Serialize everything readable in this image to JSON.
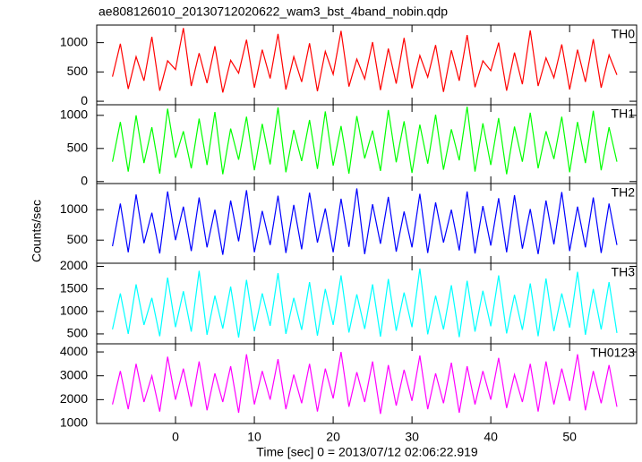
{
  "chart_data": {
    "type": "line",
    "title": "ae808126010_20130712020622_wam3_bst_4band_nobin.qdp",
    "x_label": "Time [sec] 0 = 2013/07/12 02:06:22.919",
    "y_label": "Counts/sec",
    "xlim": [
      -10,
      58.5
    ],
    "xticks": [
      0,
      10,
      20,
      30,
      40,
      50
    ],
    "x": [
      -8,
      -7,
      -6,
      -5,
      -4,
      -3,
      -2,
      -1,
      0,
      1,
      2,
      3,
      4,
      5,
      6,
      7,
      8,
      9,
      10,
      11,
      12,
      13,
      14,
      15,
      16,
      17,
      18,
      19,
      20,
      21,
      22,
      23,
      24,
      25,
      26,
      27,
      28,
      29,
      30,
      31,
      32,
      33,
      34,
      35,
      36,
      37,
      38,
      39,
      40,
      41,
      42,
      43,
      44,
      45,
      46,
      47,
      48,
      49,
      50,
      51,
      52,
      53,
      54,
      55,
      56
    ],
    "series": [
      {
        "name": "TH0",
        "color": "#ff0000",
        "ylim": [
          -60,
          1300
        ],
        "yticks": [
          0,
          500,
          1000
        ],
        "values": [
          420,
          980,
          210,
          760,
          350,
          1100,
          180,
          690,
          540,
          1250,
          260,
          820,
          310,
          940,
          150,
          700,
          480,
          1050,
          230,
          880,
          390,
          1150,
          200,
          760,
          330,
          990,
          170,
          850,
          460,
          1200,
          250,
          720,
          380,
          1010,
          190,
          900,
          300,
          1080,
          220,
          780,
          410,
          960,
          160,
          870,
          350,
          1130,
          240,
          690,
          520,
          1000,
          180,
          830,
          290,
          1210,
          260,
          740,
          400,
          970,
          200,
          880,
          330,
          1060,
          230,
          790,
          450
        ]
      },
      {
        "name": "TH1",
        "color": "#00ff00",
        "ylim": [
          -30,
          1160
        ],
        "yticks": [
          0,
          500,
          1000
        ],
        "values": [
          300,
          900,
          150,
          1000,
          280,
          820,
          120,
          1100,
          360,
          760,
          200,
          950,
          250,
          1050,
          110,
          800,
          330,
          980,
          170,
          870,
          260,
          1120,
          140,
          780,
          310,
          930,
          190,
          1060,
          240,
          840,
          120,
          990,
          350,
          770,
          160,
          1080,
          290,
          910,
          130,
          860,
          270,
          1010,
          180,
          790,
          320,
          1130,
          150,
          880,
          250,
          960,
          110,
          830,
          300,
          1040,
          200,
          760,
          340,
          980,
          140,
          900,
          280,
          1070,
          170,
          820,
          300
        ]
      },
      {
        "name": "TH2",
        "color": "#0000ff",
        "ylim": [
          120,
          1430
        ],
        "yticks": [
          500,
          1000
        ],
        "values": [
          400,
          1100,
          300,
          1250,
          450,
          950,
          280,
          1300,
          500,
          1050,
          320,
          1200,
          380,
          1000,
          260,
          1150,
          480,
          1320,
          300,
          980,
          420,
          1230,
          290,
          1080,
          350,
          1280,
          460,
          1020,
          300,
          1180,
          390,
          1350,
          270,
          1090,
          440,
          1210,
          310,
          970,
          380,
          1260,
          290,
          1120,
          460,
          1000,
          330,
          1300,
          280,
          1060,
          410,
          1190,
          300,
          1240,
          360,
          1010,
          270,
          1150,
          430,
          1290,
          320,
          1050,
          380,
          1200,
          290,
          1100,
          420
        ]
      },
      {
        "name": "TH3",
        "color": "#00ffff",
        "ylim": [
          280,
          2070
        ],
        "yticks": [
          500,
          1000,
          1500,
          2000
        ],
        "values": [
          600,
          1400,
          500,
          1600,
          700,
          1300,
          450,
          1750,
          650,
          1450,
          550,
          1900,
          480,
          1350,
          620,
          1550,
          420,
          1700,
          560,
          1400,
          680,
          1850,
          500,
          1300,
          590,
          1650,
          460,
          1500,
          700,
          1800,
          530,
          1380,
          610,
          1600,
          440,
          1720,
          570,
          1420,
          650,
          1950,
          490,
          1350,
          600,
          1580,
          430,
          1680,
          550,
          1460,
          670,
          1800,
          510,
          1370,
          590,
          1620,
          450,
          1730,
          560,
          1400,
          640,
          1880,
          480,
          1500,
          600,
          1650,
          520
        ]
      },
      {
        "name": "TH0123",
        "color": "#ff00ff",
        "ylim": [
          1000,
          4340
        ],
        "yticks": [
          1000,
          2000,
          3000,
          4000
        ],
        "values": [
          1800,
          3200,
          1600,
          3500,
          1900,
          3000,
          1500,
          3800,
          2000,
          3300,
          1700,
          3600,
          1550,
          3100,
          1900,
          3400,
          1450,
          3900,
          1800,
          3200,
          2000,
          3700,
          1600,
          3050,
          1850,
          3500,
          1500,
          3300,
          2050,
          4000,
          1700,
          3150,
          1900,
          3600,
          1400,
          3450,
          1750,
          3250,
          1950,
          3850,
          1600,
          3100,
          1850,
          3550,
          1450,
          3400,
          1800,
          3200,
          2000,
          3750,
          1650,
          3050,
          1900,
          3500,
          1500,
          3600,
          1800,
          3300,
          1950,
          3900,
          1550,
          3200,
          1850,
          3450,
          1700
        ]
      }
    ]
  }
}
